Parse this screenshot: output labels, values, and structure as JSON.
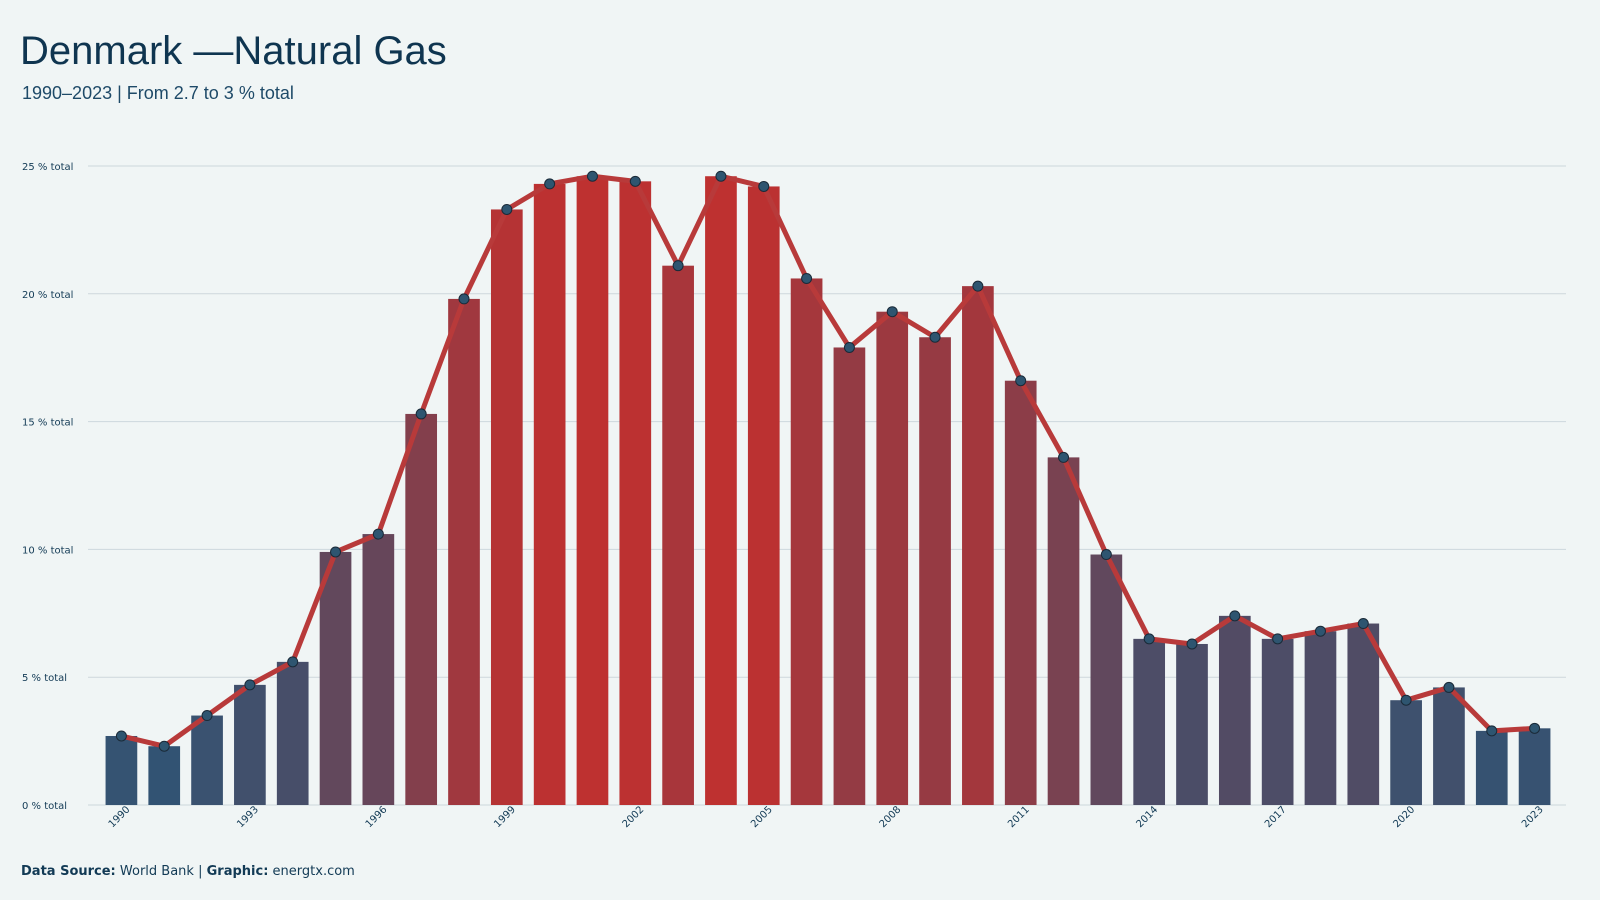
{
  "chart_data": {
    "type": "bar-line",
    "title": "Denmark —Natural Gas",
    "subtitle": "1990–2023 | From 2.7 to 3 % total",
    "categories": [
      "1990",
      null,
      null,
      "1993",
      null,
      null,
      "1996",
      null,
      null,
      "1999",
      null,
      null,
      "2002",
      null,
      null,
      "2005",
      null,
      null,
      "2008",
      null,
      null,
      "2011",
      null,
      null,
      "2014",
      null,
      null,
      "2017",
      null,
      null,
      "2020",
      null,
      null,
      "2023"
    ],
    "values": [
      2.7,
      2.3,
      3.5,
      4.7,
      5.6,
      9.9,
      10.6,
      15.3,
      19.8,
      23.3,
      24.3,
      24.6,
      24.4,
      21.1,
      24.6,
      24.2,
      20.6,
      17.9,
      19.3,
      18.3,
      20.3,
      16.6,
      13.6,
      9.8,
      6.5,
      6.3,
      7.4,
      6.5,
      6.8,
      7.1,
      4.1,
      4.6,
      2.9,
      3.0
    ],
    "low_color": "#24577a",
    "high_color": "#c0302f",
    "line_color": "#b83a3a",
    "marker_color": "#2e5570",
    "ylim": [
      0,
      25
    ],
    "yticks": [
      {
        "value": 0,
        "label": "0 % total"
      },
      {
        "value": 5,
        "label": "5 % total"
      },
      {
        "value": 10,
        "label": "10 % total"
      },
      {
        "value": 15,
        "label": "15 % total"
      },
      {
        "value": 20,
        "label": "20 % total"
      },
      {
        "value": 25,
        "label": "25 % total"
      }
    ],
    "grid": true,
    "footer": {
      "source_label": "Data Source:",
      "source": "World Bank",
      "graphic_label": "Graphic:",
      "graphic": "energtx.com"
    }
  }
}
